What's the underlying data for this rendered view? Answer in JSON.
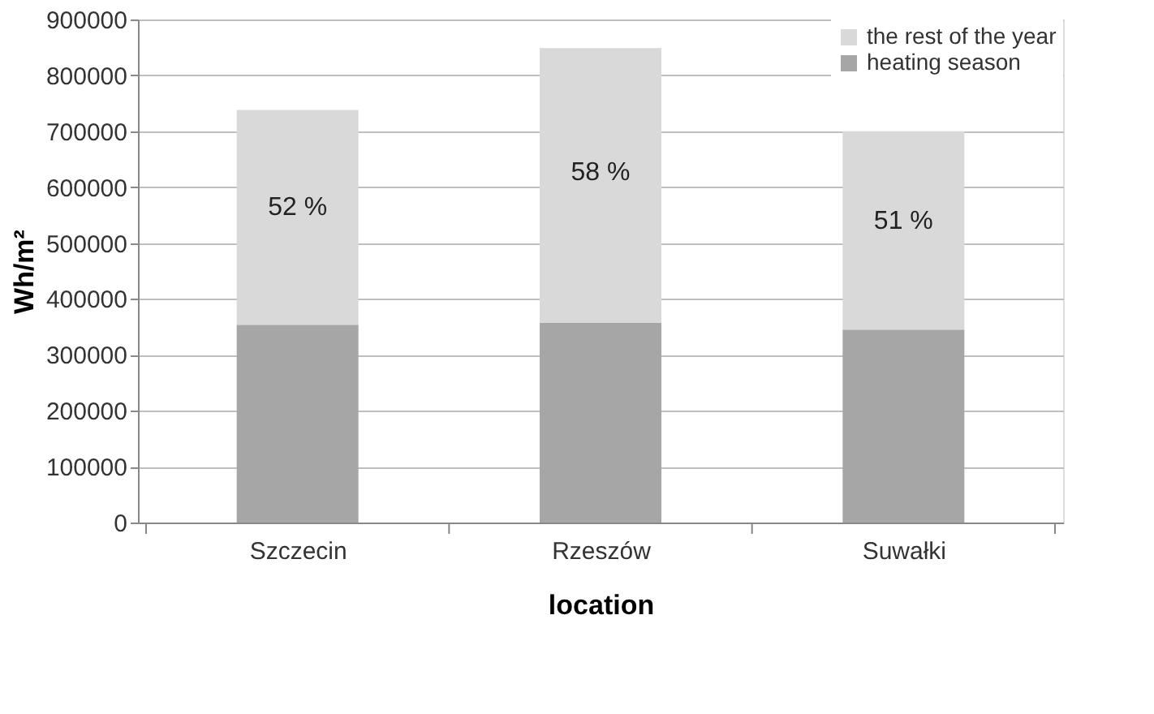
{
  "chart_data": {
    "type": "bar",
    "stacked": true,
    "xlabel": "location",
    "ylabel": "Wh/m²",
    "categories": [
      "Szczecin",
      "Rzeszów",
      "Suwałki"
    ],
    "series": [
      {
        "name": "heating season",
        "color": "#a6a6a6",
        "values": [
          354000,
          357000,
          345000
        ]
      },
      {
        "name": "the rest of the year",
        "color": "#d9d9d9",
        "values": [
          384000,
          492000,
          355000
        ]
      }
    ],
    "annotations": [
      "52 %",
      "58 %",
      "51 %"
    ],
    "ylim": [
      0,
      900000
    ],
    "yticks": [
      0,
      100000,
      200000,
      300000,
      400000,
      500000,
      600000,
      700000,
      800000,
      900000
    ],
    "grid": "y",
    "legend": "top right"
  }
}
